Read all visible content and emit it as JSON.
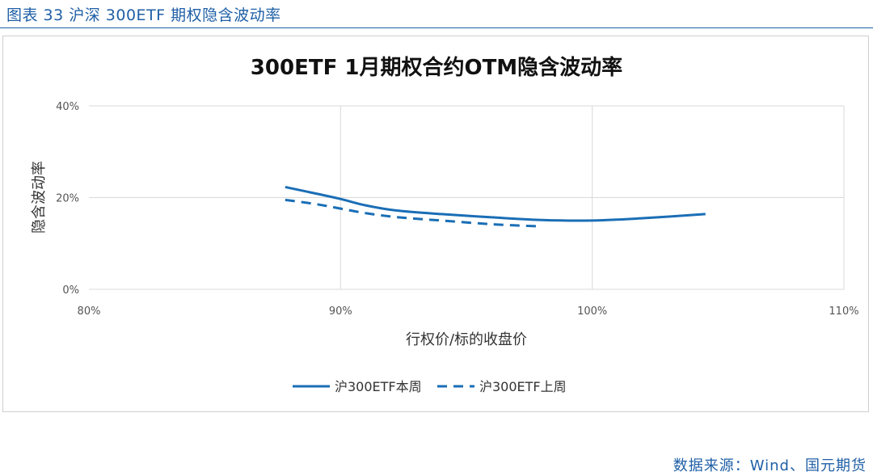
{
  "caption": "图表 33 沪深 300ETF 期权隐含波动率",
  "source": "数据来源：Wind、国元期货",
  "colors": {
    "accent": "#1f5fa6",
    "series": "#1a6eb6",
    "grid": "#d9d9d9"
  },
  "chart_data": {
    "type": "line",
    "title": "300ETF 1月期权合约OTM隐含波动率",
    "xlabel": "行权价/标的收盘价",
    "ylabel": "隐含波动率",
    "xlim": [
      80,
      110
    ],
    "ylim": [
      0,
      40
    ],
    "x_ticks": [
      "80%",
      "90%",
      "100%",
      "110%"
    ],
    "y_ticks": [
      "0%",
      "20%",
      "40%"
    ],
    "grid": true,
    "legend_position": "bottom-center",
    "series": [
      {
        "name": "沪300ETF本周",
        "style": "solid",
        "x": [
          87.8,
          89.0,
          90.0,
          91.0,
          92.2,
          94.0,
          96.0,
          98.0,
          100.0,
          102.0,
          104.5
        ],
        "y": [
          22.3,
          20.9,
          19.7,
          18.3,
          17.2,
          16.4,
          15.7,
          15.1,
          15.0,
          15.5,
          16.4
        ]
      },
      {
        "name": "沪300ETF上周",
        "style": "dashed",
        "x": [
          87.8,
          89.0,
          90.0,
          91.0,
          92.3,
          94.0,
          96.0,
          98.0
        ],
        "y": [
          19.5,
          18.6,
          17.6,
          16.6,
          15.7,
          15.0,
          14.2,
          13.7
        ]
      }
    ]
  }
}
